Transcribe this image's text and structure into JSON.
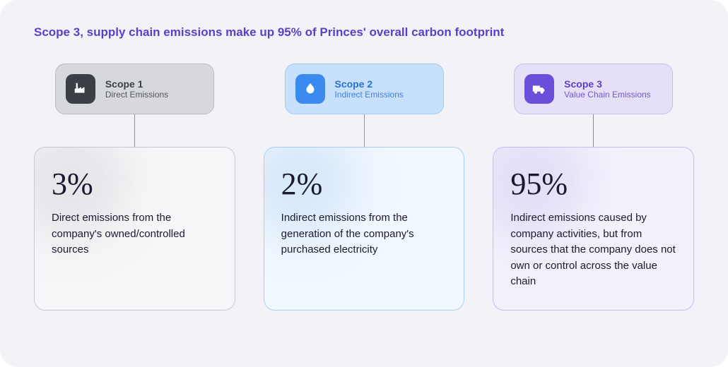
{
  "title": "Scope 3, supply chain emissions make up 95% of Princes' overall carbon footprint",
  "colors": {
    "canvas_bg": "#f3f2f9",
    "title_color": "#5b3fc9",
    "text_dark": "#1a1a2e"
  },
  "scopes": [
    {
      "id": "scope1",
      "label": "Scope 1",
      "subtitle": "Direct Emissions",
      "percent": "3%",
      "description": "Direct emissions from the company's owned/controlled sources",
      "header_bg": "#d7d8dc",
      "header_border": "#b9bbc1",
      "header_text": "#3b3f46",
      "icon_bg": "#3b3f46",
      "icon_fg": "#ffffff",
      "connector_color": "#8d8f96",
      "detail_bg": "#f6f6f8",
      "detail_border": "#c8c9cf",
      "halo": "#c8c9cf",
      "icon": "factory"
    },
    {
      "id": "scope2",
      "label": "Scope 2",
      "subtitle": "Indirect Emissions",
      "percent": "2%",
      "description": "Indirect emissions from the generation of the company's purchased electricity",
      "header_bg": "#c7e0fb",
      "header_border": "#9fcaf5",
      "header_text": "#2b72d6",
      "icon_bg": "#3b8af0",
      "icon_fg": "#ffffff",
      "connector_color": "#5fa3ea",
      "detail_bg": "#f1f7fe",
      "detail_border": "#a9cef4",
      "halo": "#a9cef4",
      "icon": "droplet"
    },
    {
      "id": "scope3",
      "label": "Scope 3",
      "subtitle": "Value Chain Emissions",
      "percent": "95%",
      "description": "Indirect emissions caused by company activities, but from sources that the company does not own or control across the value chain",
      "header_bg": "#e5e0f8",
      "header_border": "#c7bdf0",
      "header_text": "#5b3fc9",
      "icon_bg": "#6a4fd8",
      "icon_fg": "#ffffff",
      "connector_color": "#8c77de",
      "detail_bg": "#f3f1fb",
      "detail_border": "#c7bdf0",
      "halo": "#c7bdf0",
      "icon": "truck"
    }
  ]
}
